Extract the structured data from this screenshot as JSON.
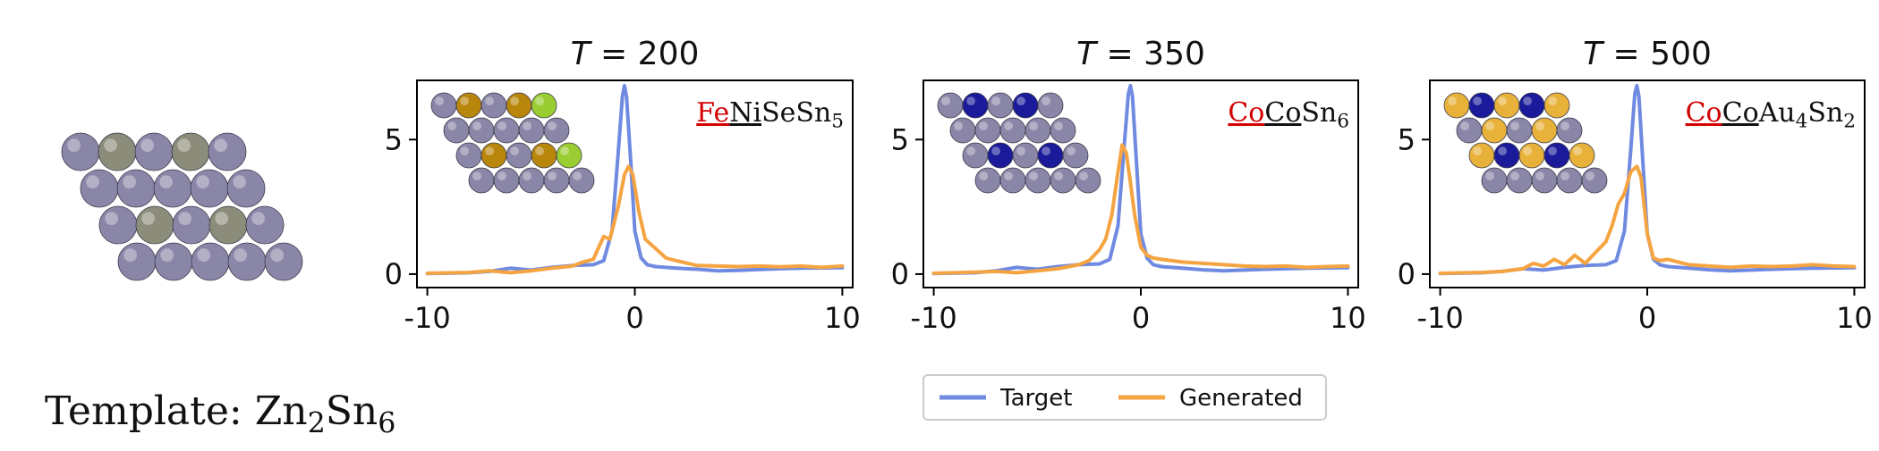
{
  "template": {
    "label_prefix": "Template: ",
    "formula": [
      {
        "text": "Zn",
        "sub": false,
        "red": false,
        "underline": false
      },
      {
        "text": "2",
        "sub": true,
        "red": false,
        "underline": false
      },
      {
        "text": "Sn",
        "sub": false,
        "red": false,
        "underline": false
      },
      {
        "text": "6",
        "sub": true,
        "red": false,
        "underline": false
      }
    ],
    "colors": {
      "host": "#8a86a8",
      "dopant": "#8c8c7a"
    }
  },
  "legend": {
    "entries": [
      {
        "label": "Target",
        "color": "#6f8ae0"
      },
      {
        "label": "Generated",
        "color": "#f5a442"
      }
    ],
    "placement": "bottom-center"
  },
  "chart_data": [
    {
      "type": "line",
      "title_var": "T",
      "title_value": "= 200",
      "xlim": [
        -10.5,
        10.5
      ],
      "ylim": [
        -0.5,
        7.2
      ],
      "xticks": [
        -10,
        0,
        10
      ],
      "yticks": [
        0,
        5
      ],
      "grid": false,
      "formula": [
        {
          "text": "Fe",
          "sub": false,
          "red": true,
          "underline": true
        },
        {
          "text": "Ni",
          "sub": false,
          "red": false,
          "underline": true
        },
        {
          "text": "Se",
          "sub": false,
          "red": false,
          "underline": false
        },
        {
          "text": "Sn",
          "sub": false,
          "red": false,
          "underline": false
        },
        {
          "text": "5",
          "sub": true,
          "red": false,
          "underline": false
        }
      ],
      "inset_colors": {
        "host": "#8a86a8",
        "a": "#b8860b",
        "b": "#9acd32"
      },
      "series": [
        {
          "name": "Target",
          "color": "#6f8ae0",
          "x": [
            -10,
            -8,
            -7,
            -6,
            -5,
            -4,
            -3,
            -2,
            -1.5,
            -1.1,
            -0.8,
            -0.6,
            -0.5,
            -0.4,
            -0.2,
            0,
            0.3,
            0.6,
            1,
            2,
            3,
            4,
            5,
            6,
            7,
            8,
            9,
            10
          ],
          "y": [
            0.02,
            0.05,
            0.1,
            0.22,
            0.15,
            0.25,
            0.32,
            0.35,
            0.5,
            1.6,
            4.5,
            6.6,
            7.0,
            6.6,
            4.2,
            1.6,
            0.6,
            0.35,
            0.28,
            0.22,
            0.18,
            0.12,
            0.14,
            0.17,
            0.2,
            0.22,
            0.23,
            0.24
          ]
        },
        {
          "name": "Generated",
          "color": "#f5a442",
          "x": [
            -10,
            -8,
            -7,
            -6,
            -5,
            -4,
            -3,
            -2.5,
            -2,
            -1.8,
            -1.5,
            -1.2,
            -0.8,
            -0.5,
            -0.3,
            -0.1,
            0.2,
            0.5,
            1,
            1.5,
            2,
            3,
            4,
            5,
            6,
            7,
            8,
            9,
            10
          ],
          "y": [
            0.03,
            0.06,
            0.12,
            0.05,
            0.12,
            0.22,
            0.3,
            0.45,
            0.55,
            0.9,
            1.4,
            1.3,
            2.5,
            3.7,
            4.0,
            3.7,
            2.3,
            1.3,
            0.95,
            0.6,
            0.5,
            0.32,
            0.3,
            0.28,
            0.3,
            0.27,
            0.3,
            0.25,
            0.3
          ]
        }
      ]
    },
    {
      "type": "line",
      "title_var": "T",
      "title_value": "= 350",
      "xlim": [
        -10.5,
        10.5
      ],
      "ylim": [
        -0.5,
        7.2
      ],
      "xticks": [
        -10,
        0,
        10
      ],
      "yticks": [
        0,
        5
      ],
      "grid": false,
      "formula": [
        {
          "text": "Co",
          "sub": false,
          "red": true,
          "underline": true
        },
        {
          "text": "Co",
          "sub": false,
          "red": false,
          "underline": true
        },
        {
          "text": "Sn",
          "sub": false,
          "red": false,
          "underline": false
        },
        {
          "text": "6",
          "sub": true,
          "red": false,
          "underline": false
        }
      ],
      "inset_colors": {
        "host": "#8a86a8",
        "a": "#1a1a9a",
        "b": "#1a1a9a"
      },
      "series": [
        {
          "name": "Target",
          "color": "#6f8ae0",
          "x": [
            -10,
            -8,
            -7,
            -6,
            -5,
            -4,
            -3,
            -2,
            -1.5,
            -1.1,
            -0.8,
            -0.6,
            -0.5,
            -0.4,
            -0.2,
            0,
            0.3,
            0.6,
            1,
            2,
            3,
            4,
            5,
            6,
            7,
            8,
            9,
            10
          ],
          "y": [
            0.02,
            0.05,
            0.12,
            0.25,
            0.18,
            0.28,
            0.35,
            0.38,
            0.55,
            1.8,
            4.8,
            6.7,
            7.0,
            6.6,
            4.0,
            1.5,
            0.6,
            0.35,
            0.28,
            0.22,
            0.16,
            0.12,
            0.15,
            0.18,
            0.2,
            0.22,
            0.23,
            0.24
          ]
        },
        {
          "name": "Generated",
          "color": "#f5a442",
          "x": [
            -10,
            -8,
            -7,
            -6,
            -5,
            -4,
            -3,
            -2.5,
            -2,
            -1.7,
            -1.4,
            -1.1,
            -0.9,
            -0.7,
            -0.5,
            -0.3,
            0,
            0.3,
            0.6,
            1,
            1.5,
            2,
            3,
            4,
            5,
            6,
            7,
            8,
            9,
            10
          ],
          "y": [
            0.03,
            0.07,
            0.1,
            0.05,
            0.12,
            0.2,
            0.35,
            0.5,
            0.9,
            1.3,
            2.2,
            3.8,
            4.8,
            4.5,
            3.4,
            2.2,
            1.0,
            0.7,
            0.6,
            0.55,
            0.5,
            0.45,
            0.4,
            0.35,
            0.3,
            0.28,
            0.3,
            0.25,
            0.28,
            0.3
          ]
        }
      ]
    },
    {
      "type": "line",
      "title_var": "T",
      "title_value": "= 500",
      "xlim": [
        -10.5,
        10.5
      ],
      "ylim": [
        -0.5,
        7.2
      ],
      "xticks": [
        -10,
        0,
        10
      ],
      "yticks": [
        0,
        5
      ],
      "grid": false,
      "formula": [
        {
          "text": "Co",
          "sub": false,
          "red": true,
          "underline": true
        },
        {
          "text": "Co",
          "sub": false,
          "red": false,
          "underline": true
        },
        {
          "text": "Au",
          "sub": false,
          "red": false,
          "underline": false
        },
        {
          "text": "4",
          "sub": true,
          "red": false,
          "underline": false
        },
        {
          "text": "Sn",
          "sub": false,
          "red": false,
          "underline": false
        },
        {
          "text": "2",
          "sub": true,
          "red": false,
          "underline": false
        }
      ],
      "inset_colors": {
        "host": "#8a86a8",
        "a": "#e8b23a",
        "b": "#1a1a9a"
      },
      "series": [
        {
          "name": "Target",
          "color": "#6f8ae0",
          "x": [
            -10,
            -8,
            -7,
            -6,
            -5,
            -4,
            -3,
            -2,
            -1.5,
            -1.1,
            -0.8,
            -0.6,
            -0.5,
            -0.4,
            -0.2,
            0,
            0.3,
            0.6,
            1,
            2,
            3,
            4,
            5,
            6,
            7,
            8,
            9,
            10
          ],
          "y": [
            0.02,
            0.05,
            0.1,
            0.2,
            0.15,
            0.25,
            0.32,
            0.35,
            0.5,
            1.6,
            4.6,
            6.7,
            7.0,
            6.6,
            4.0,
            1.5,
            0.55,
            0.35,
            0.28,
            0.22,
            0.16,
            0.12,
            0.15,
            0.18,
            0.2,
            0.22,
            0.23,
            0.24
          ]
        },
        {
          "name": "Generated",
          "color": "#f5a442",
          "x": [
            -10,
            -8,
            -7,
            -6,
            -5.5,
            -5,
            -4.5,
            -4,
            -3.5,
            -3,
            -2.5,
            -2,
            -1.7,
            -1.4,
            -1.1,
            -0.8,
            -0.5,
            -0.3,
            0,
            0.3,
            0.6,
            1,
            1.5,
            2,
            3,
            4,
            5,
            6,
            7,
            8,
            9,
            10
          ],
          "y": [
            0.03,
            0.06,
            0.1,
            0.2,
            0.4,
            0.3,
            0.55,
            0.35,
            0.7,
            0.4,
            0.8,
            1.2,
            1.8,
            2.6,
            3.0,
            3.8,
            4.0,
            3.6,
            1.5,
            0.6,
            0.5,
            0.55,
            0.45,
            0.35,
            0.3,
            0.25,
            0.3,
            0.28,
            0.3,
            0.35,
            0.3,
            0.28
          ]
        }
      ]
    }
  ]
}
